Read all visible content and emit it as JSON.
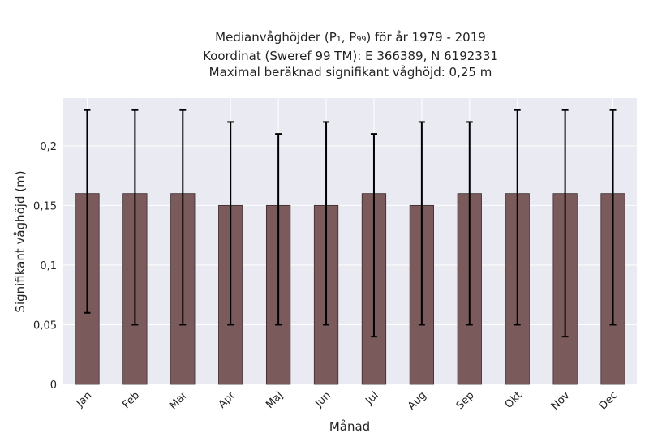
{
  "chart_data": {
    "type": "bar",
    "title_lines": [
      "Medianvåghöjder (P₁, P₉₉) för år 1979 - 2019",
      "Koordinat (Sweref 99 TM): E 366389, N 6192331",
      "Maximal beräknad signifikant våghöjd: 0,25 m"
    ],
    "xlabel": "Månad",
    "ylabel": "Signifikant våghöjd (m)",
    "categories": [
      "Jan",
      "Feb",
      "Mar",
      "Apr",
      "Maj",
      "Jun",
      "Jul",
      "Aug",
      "Sep",
      "Okt",
      "Nov",
      "Dec"
    ],
    "values": [
      0.16,
      0.16,
      0.16,
      0.15,
      0.15,
      0.15,
      0.16,
      0.15,
      0.16,
      0.16,
      0.16,
      0.16
    ],
    "p1": [
      0.06,
      0.05,
      0.05,
      0.05,
      0.05,
      0.05,
      0.04,
      0.05,
      0.05,
      0.05,
      0.04,
      0.05
    ],
    "p99": [
      0.23,
      0.23,
      0.23,
      0.22,
      0.21,
      0.22,
      0.21,
      0.22,
      0.22,
      0.23,
      0.23,
      0.23
    ],
    "ylim": [
      0,
      0.24
    ],
    "yticks": [
      0,
      0.05,
      0.1,
      0.15,
      0.2
    ],
    "ytick_labels": [
      "0",
      "0,05",
      "0,1",
      "0,15",
      "0,2"
    ],
    "grid": true,
    "colors": {
      "bar": "#7b5a5c",
      "bar_edge": "#3b2b2c",
      "error": "#000000",
      "plot_bg": "#eaeaf2",
      "grid": "#ffffff"
    }
  }
}
